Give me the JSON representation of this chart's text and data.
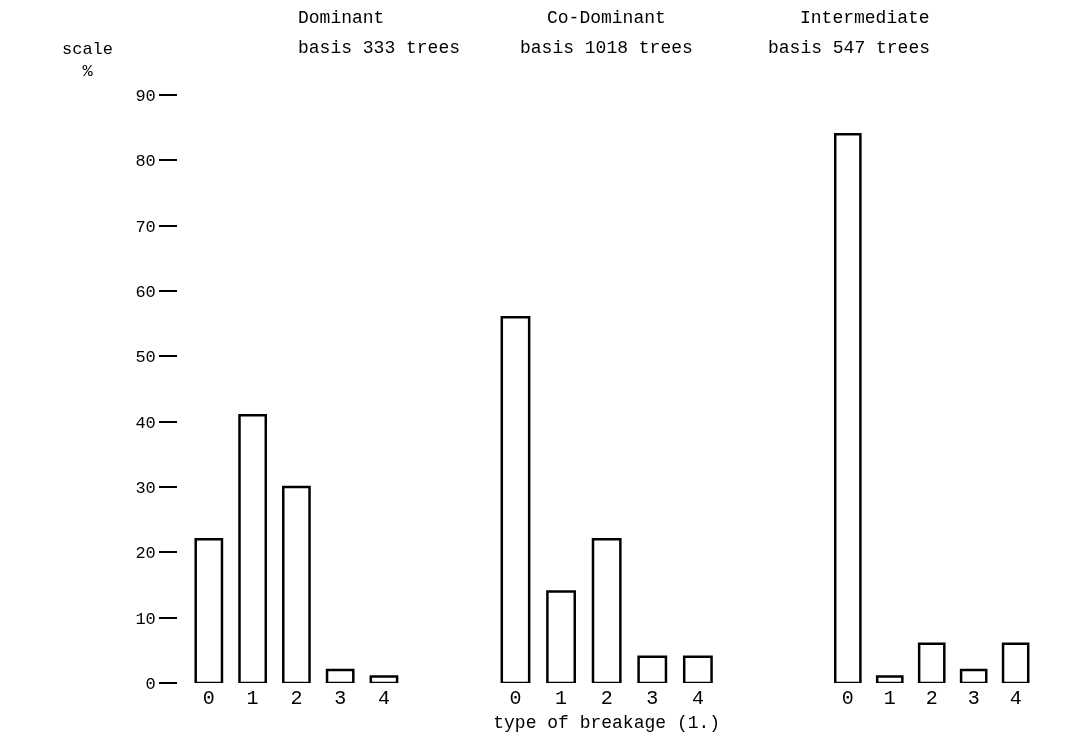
{
  "chart_data": [
    {
      "type": "bar",
      "title": "Dominant",
      "subtitle": "basis 333 trees",
      "ylabel": "scale %",
      "categories": [
        "0",
        "1",
        "2",
        "3",
        "4"
      ],
      "values": [
        22,
        41,
        30,
        2,
        1
      ],
      "color": "#ffffff",
      "ylim": [
        0,
        90
      ],
      "yticks": [
        0,
        10,
        20,
        30,
        40,
        50,
        60,
        70,
        80,
        90
      ]
    },
    {
      "type": "bar",
      "title": "Co-Dominant",
      "subtitle": "basis 1018 trees",
      "xlabel": "type of breakage (1.)",
      "categories": [
        "0",
        "1",
        "2",
        "3",
        "4"
      ],
      "values": [
        56,
        14,
        22,
        4,
        4
      ],
      "color": "#ffffff",
      "ylim": [
        0,
        90
      ],
      "tick_labels": "x"
    },
    {
      "type": "bar",
      "title": "Intermediate",
      "subtitle": "basis 547 trees",
      "categories": [
        "0",
        "1",
        "2",
        "3",
        "4"
      ],
      "values": [
        84,
        1,
        6,
        2,
        6
      ],
      "color": "#ffffff",
      "ylim": [
        0,
        90
      ],
      "tick_labels": "x"
    }
  ]
}
